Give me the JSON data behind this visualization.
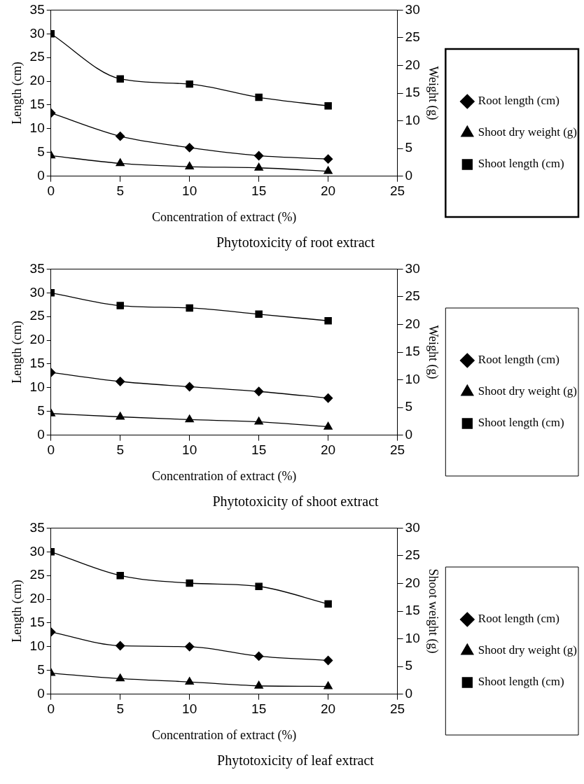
{
  "chart_data": [
    {
      "type": "line",
      "title": "Phytotoxicity of root extract",
      "xlabel": "Concentration of extract (%)",
      "ylabel": "Length (cm)",
      "y2label": "Weight (g)",
      "x": [
        0,
        5,
        10,
        15,
        20
      ],
      "xlim": [
        0,
        25
      ],
      "xticks": [
        0,
        5,
        10,
        15,
        20,
        25
      ],
      "ylim": [
        0,
        35
      ],
      "yticks": [
        0,
        5,
        10,
        15,
        20,
        25,
        30,
        35
      ],
      "y2lim": [
        0,
        30
      ],
      "y2ticks": [
        0,
        5,
        10,
        15,
        20,
        25,
        30
      ],
      "grid": false,
      "legend": "right",
      "series": [
        {
          "name": "Root length (cm)",
          "color": "#000000",
          "marker": "diamond",
          "values": [
            13.3,
            8.4,
            6.0,
            4.3,
            3.6
          ]
        },
        {
          "name": "Shoot dry weight (g)",
          "color": "#000000",
          "marker": "triangle",
          "axis": "y2",
          "values": [
            3.7,
            2.3,
            1.7,
            1.5,
            0.9
          ]
        },
        {
          "name": "Shoot length (cm)",
          "color": "#000000",
          "marker": "square",
          "values": [
            30,
            20.5,
            19.4,
            16.6,
            14.8
          ]
        }
      ]
    },
    {
      "type": "line",
      "title": "Phytotoxicity of shoot extract",
      "xlabel": "Concentration of extract (%)",
      "ylabel": "Length (cm)",
      "y2label": "Weight (g)",
      "x": [
        0,
        5,
        10,
        15,
        20
      ],
      "xlim": [
        0,
        25
      ],
      "xticks": [
        0,
        5,
        10,
        15,
        20,
        25
      ],
      "ylim": [
        0,
        35
      ],
      "yticks": [
        0,
        5,
        10,
        15,
        20,
        25,
        30,
        35
      ],
      "y2lim": [
        0,
        30
      ],
      "y2ticks": [
        0,
        5,
        10,
        15,
        20,
        25,
        30
      ],
      "grid": false,
      "legend": "right",
      "series": [
        {
          "name": "Root length (cm)",
          "color": "#000000",
          "marker": "diamond",
          "values": [
            13.2,
            11.3,
            10.2,
            9.2,
            7.8
          ]
        },
        {
          "name": "Shoot dry weight (g)",
          "color": "#000000",
          "marker": "triangle",
          "axis": "y2",
          "values": [
            3.9,
            3.3,
            2.8,
            2.4,
            1.5
          ]
        },
        {
          "name": "Shoot length (cm)",
          "color": "#000000",
          "marker": "square",
          "values": [
            30,
            27.3,
            26.8,
            25.5,
            24.1
          ]
        }
      ]
    },
    {
      "type": "line",
      "title": "Phytotoxicity of leaf extract",
      "xlabel": "Concentration of extract (%)",
      "ylabel": "Length (cm)",
      "y2label": "Shoot weight (g)",
      "x": [
        0,
        5,
        10,
        15,
        20
      ],
      "xlim": [
        0,
        25
      ],
      "xticks": [
        0,
        5,
        10,
        15,
        20,
        25
      ],
      "ylim": [
        0,
        35
      ],
      "yticks": [
        0,
        5,
        10,
        15,
        20,
        25,
        30,
        35
      ],
      "y2lim": [
        0,
        30
      ],
      "y2ticks": [
        0,
        5,
        10,
        15,
        20,
        25,
        30
      ],
      "grid": false,
      "legend": "right",
      "series": [
        {
          "name": "Root length (cm)",
          "color": "#000000",
          "marker": "diamond",
          "values": [
            13.1,
            10.2,
            10.0,
            8.0,
            7.1
          ]
        },
        {
          "name": "Shoot dry weight (g)",
          "color": "#000000",
          "marker": "triangle",
          "axis": "y2",
          "values": [
            3.8,
            2.8,
            2.2,
            1.5,
            1.4
          ]
        },
        {
          "name": "Shoot length (cm)",
          "color": "#000000",
          "marker": "square",
          "values": [
            30,
            25,
            23.4,
            22.7,
            19.0
          ]
        }
      ]
    }
  ]
}
